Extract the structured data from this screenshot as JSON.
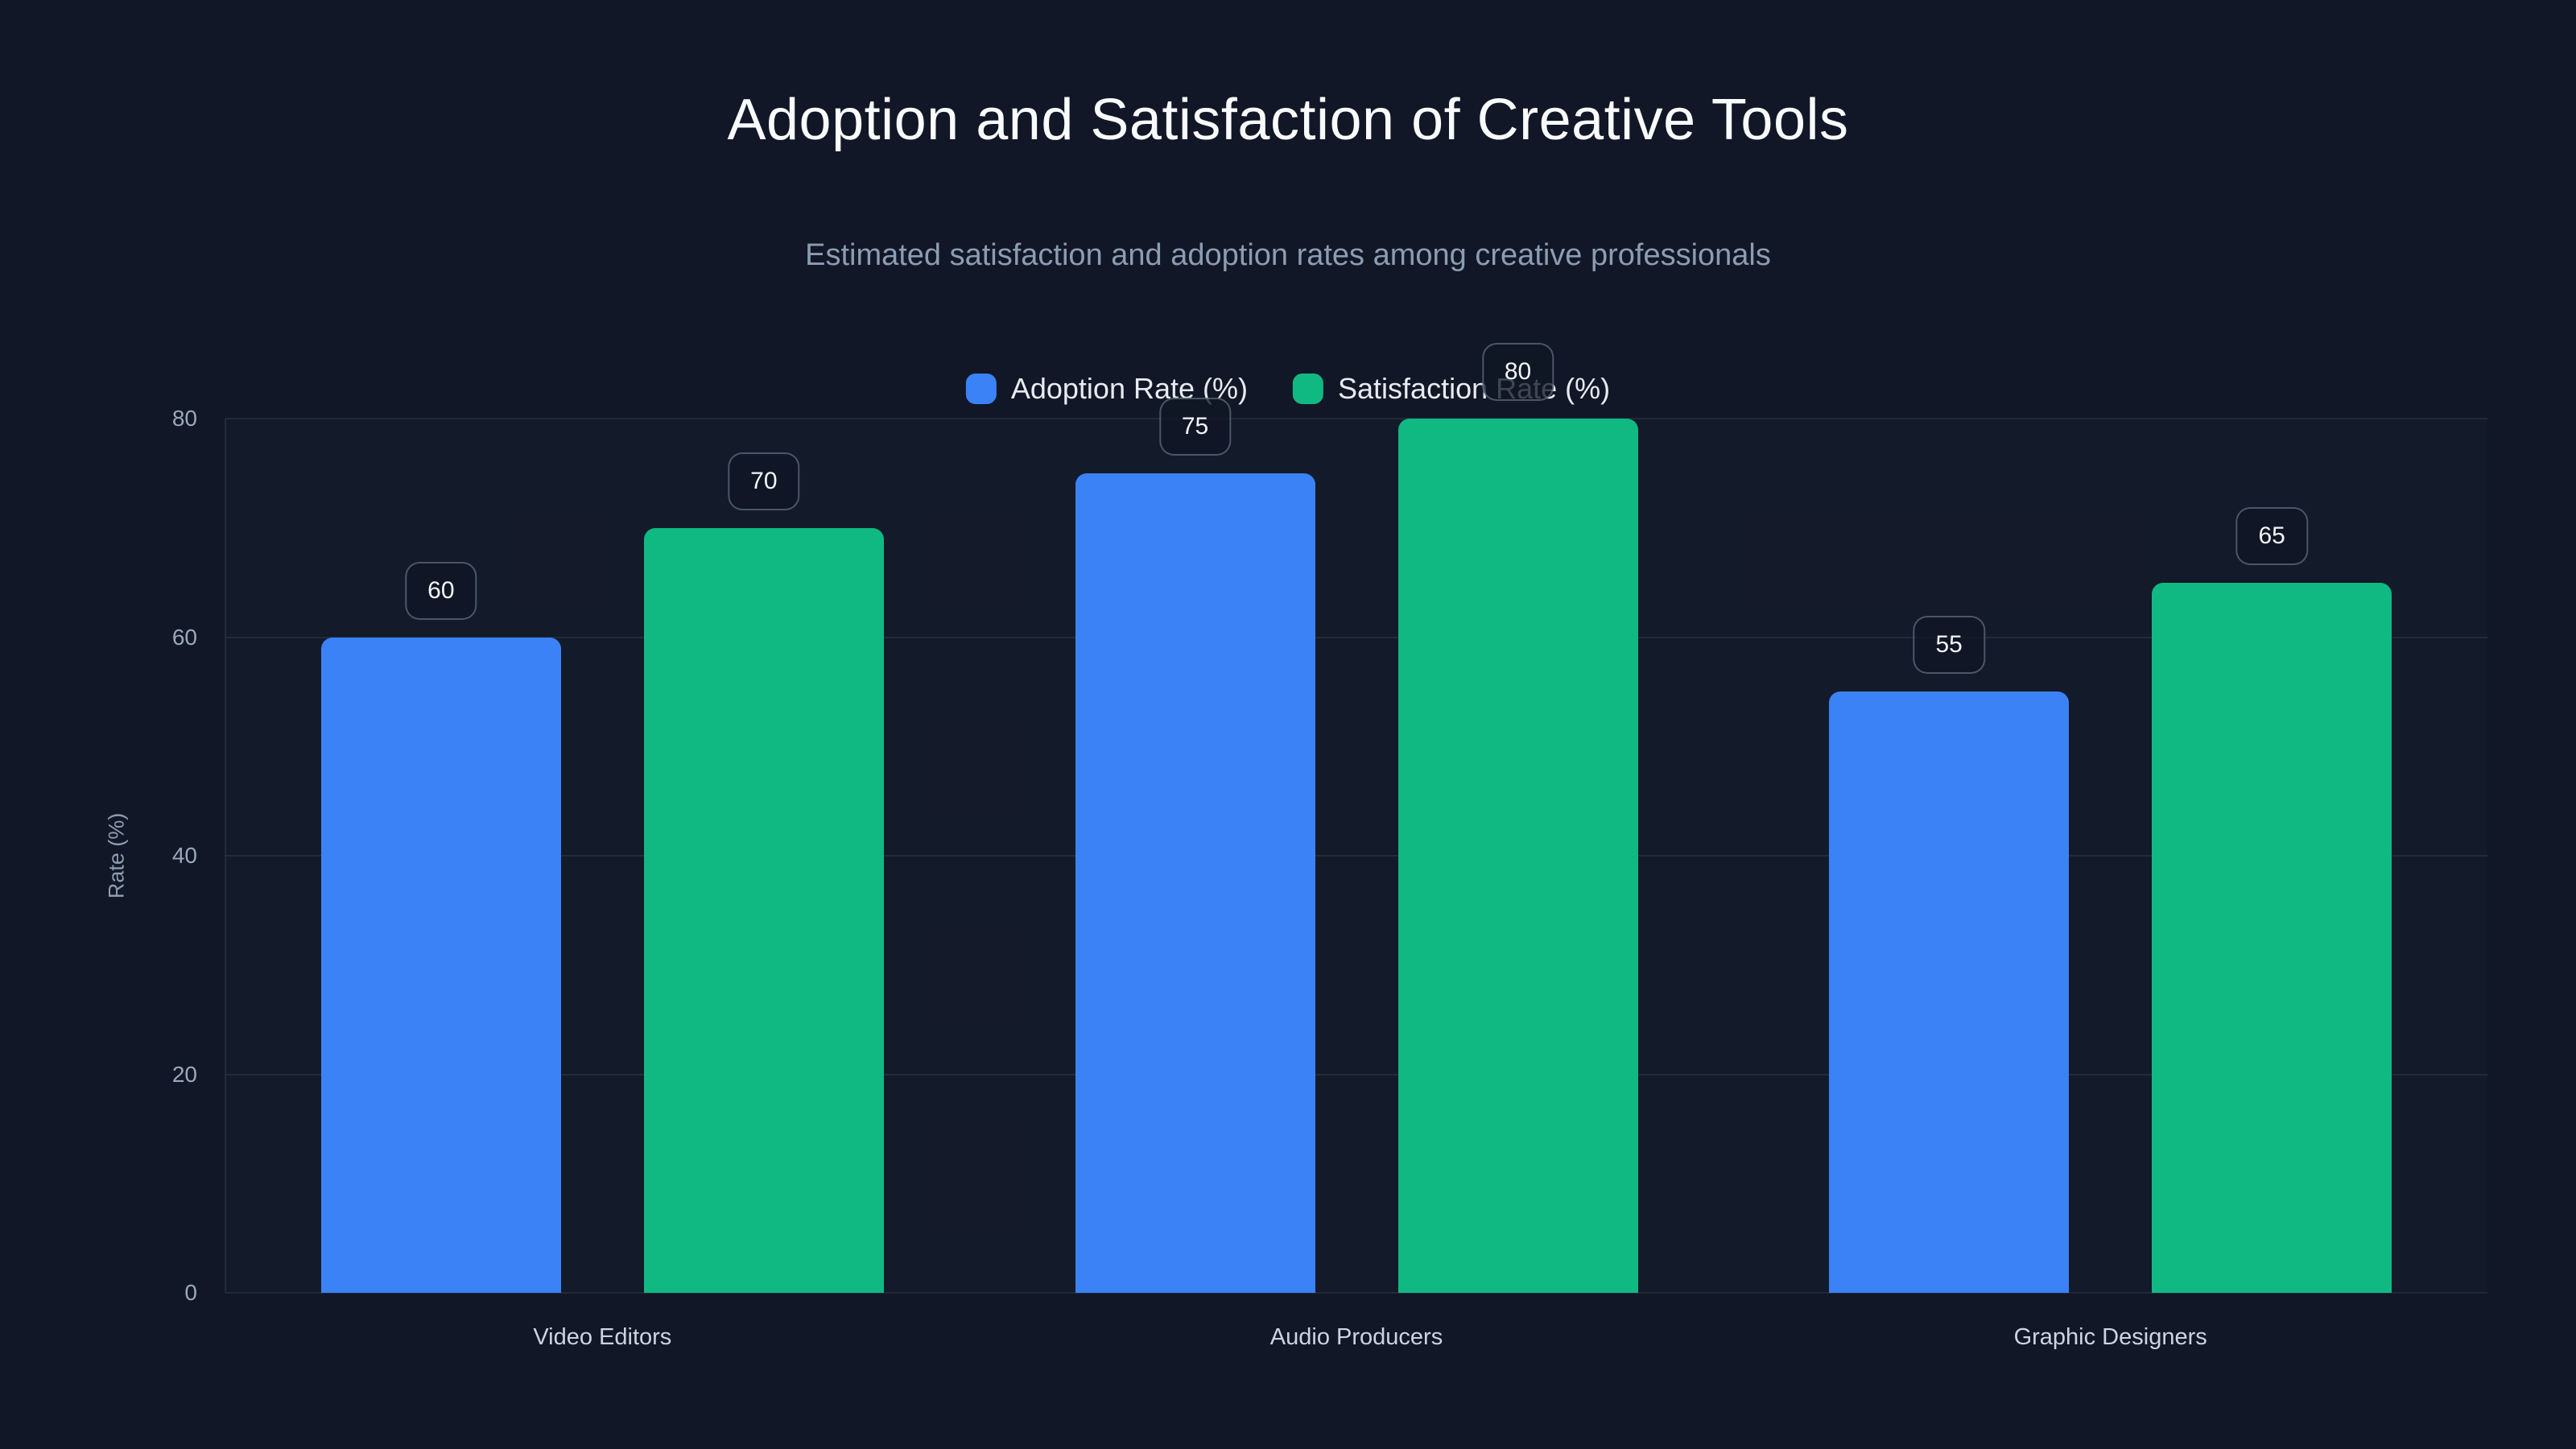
{
  "chart_data": {
    "type": "bar",
    "title": "Adoption and Satisfaction of Creative Tools",
    "subtitle": "Estimated satisfaction and adoption rates among creative professionals",
    "categories": [
      "Video Editors",
      "Audio Producers",
      "Graphic Designers"
    ],
    "series": [
      {
        "name": "Adoption Rate (%)",
        "color": "#3b82f6",
        "values": [
          60,
          75,
          55
        ]
      },
      {
        "name": "Satisfaction Rate (%)",
        "color": "#10b981",
        "values": [
          70,
          80,
          65
        ]
      }
    ],
    "xlabel": "",
    "ylabel": "Rate (%)",
    "yticks": [
      0,
      20,
      40,
      60,
      80
    ],
    "ylim": [
      0,
      80
    ],
    "grid": true,
    "legend_position": "top-center",
    "value_labels": [
      60,
      70,
      75,
      80,
      55,
      65
    ],
    "background_color": "#111726",
    "grid_color": "rgba(148,163,184,0.13)",
    "text_color": "#f8fafc",
    "muted_text_color": "#8c9cb3"
  }
}
